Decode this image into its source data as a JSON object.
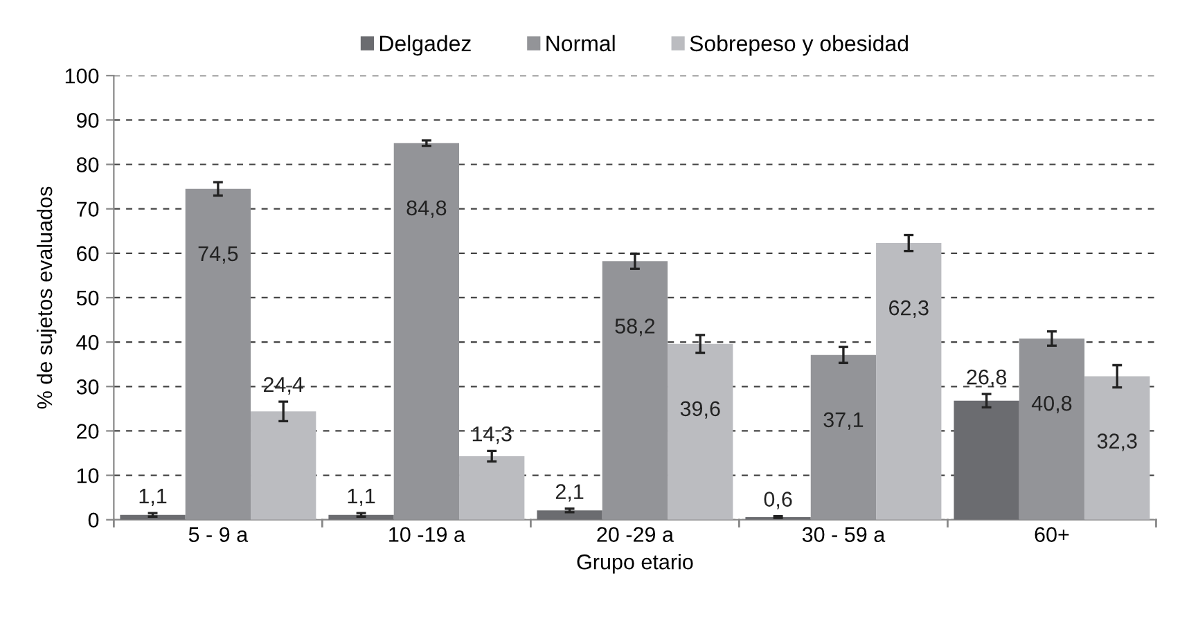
{
  "chart_data": {
    "type": "bar",
    "xlabel": "Grupo etario",
    "ylabel": "% de sujetos evaluados",
    "categories": [
      "5 - 9 a",
      "10 -19 a",
      "20 -29 a",
      "30 - 59 a",
      "60+"
    ],
    "series": [
      {
        "name": "Delgadez",
        "color": "#6b6c70",
        "values": [
          1.1,
          1.1,
          2.1,
          0.6,
          26.8
        ],
        "errors": [
          0.4,
          0.4,
          0.4,
          0.2,
          1.5
        ],
        "value_labels": [
          "1,1",
          "1,1",
          "2,1",
          "0,6",
          "26,8"
        ]
      },
      {
        "name": "Normal",
        "color": "#939498",
        "values": [
          74.5,
          84.8,
          58.2,
          37.1,
          40.8
        ],
        "errors": [
          1.5,
          0.6,
          1.7,
          1.8,
          1.6
        ],
        "value_labels": [
          "74,5",
          "84,8",
          "58,2",
          "37,1",
          "40,8"
        ]
      },
      {
        "name": "Sobrepeso y obesidad",
        "color": "#bbbcc0",
        "values": [
          24.4,
          14.3,
          39.6,
          62.3,
          32.3
        ],
        "errors": [
          2.2,
          1.2,
          2.0,
          1.8,
          2.5
        ],
        "value_labels": [
          "24,4",
          "14,3",
          "39,6",
          "62,3",
          "32,3"
        ]
      }
    ],
    "ylim": [
      0,
      100
    ],
    "yticks": [
      0,
      10,
      20,
      30,
      40,
      50,
      60,
      70,
      80,
      90,
      100
    ],
    "grid": "y",
    "line_style": "dashed",
    "legend": "top"
  }
}
